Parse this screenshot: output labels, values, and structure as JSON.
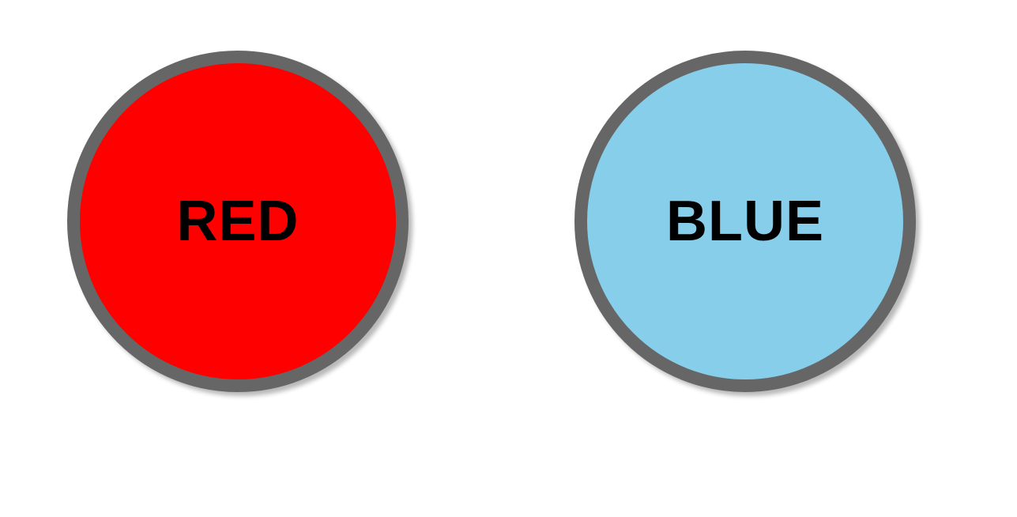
{
  "buttons": {
    "red": {
      "label": "RED",
      "fill_color": "#ff0000",
      "border_color": "#666666"
    },
    "blue": {
      "label": "BLUE",
      "fill_color": "#87ceeb",
      "border_color": "#666666"
    }
  }
}
